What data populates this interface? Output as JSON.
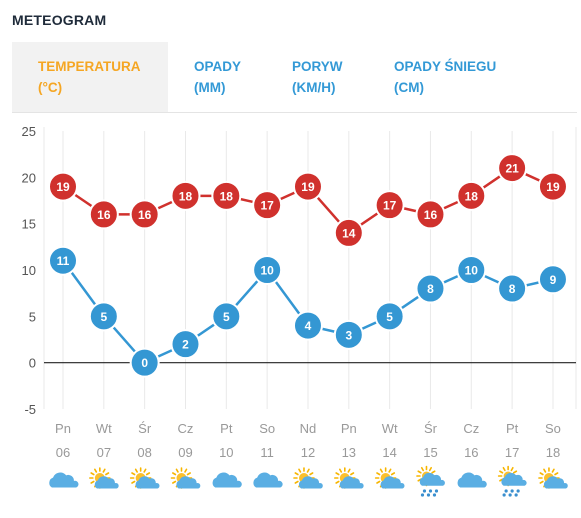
{
  "header": {
    "title": "METEOGRAM"
  },
  "tabs": [
    {
      "line1": "TEMPERATURA",
      "line2": "(°C)",
      "active": true
    },
    {
      "line1": "OPADY",
      "line2": "(MM)",
      "active": false
    },
    {
      "line1": "PORYW",
      "line2": "(KM/H)",
      "active": false
    },
    {
      "line1": "OPADY ŚNIEGU",
      "line2": "(CM)",
      "active": false
    }
  ],
  "colors": {
    "high": "#d0312d",
    "low": "#3497d3",
    "active_tab": "#f5a623",
    "tab": "#3399d6"
  },
  "chart_data": {
    "type": "line",
    "ylim": [
      -5,
      25
    ],
    "yticks": [
      25,
      20,
      15,
      10,
      5,
      0,
      -5
    ],
    "grid": true,
    "categories": [
      "Pn",
      "Wt",
      "Śr",
      "Cz",
      "Pt",
      "So",
      "Nd",
      "Pn",
      "Wt",
      "Śr",
      "Cz",
      "Pt",
      "So"
    ],
    "dates": [
      "06",
      "07",
      "08",
      "09",
      "10",
      "11",
      "12",
      "13",
      "14",
      "15",
      "16",
      "17",
      "18"
    ],
    "icons": [
      "cloud-icon",
      "partly-cloudy-icon",
      "partly-cloudy-icon",
      "partly-cloudy-icon",
      "cloud-icon",
      "cloud-icon",
      "partly-cloudy-icon",
      "partly-cloudy-icon",
      "partly-cloudy-icon",
      "rain-sun-icon",
      "cloud-icon",
      "rain-sun-icon",
      "partly-cloudy-icon"
    ],
    "series": [
      {
        "values": [
          19,
          16,
          16,
          18,
          18,
          17,
          19,
          14,
          17,
          16,
          18,
          21,
          19
        ]
      },
      {
        "values": [
          11,
          5,
          0,
          2,
          5,
          10,
          4,
          3,
          5,
          8,
          10,
          8,
          9
        ]
      }
    ]
  }
}
